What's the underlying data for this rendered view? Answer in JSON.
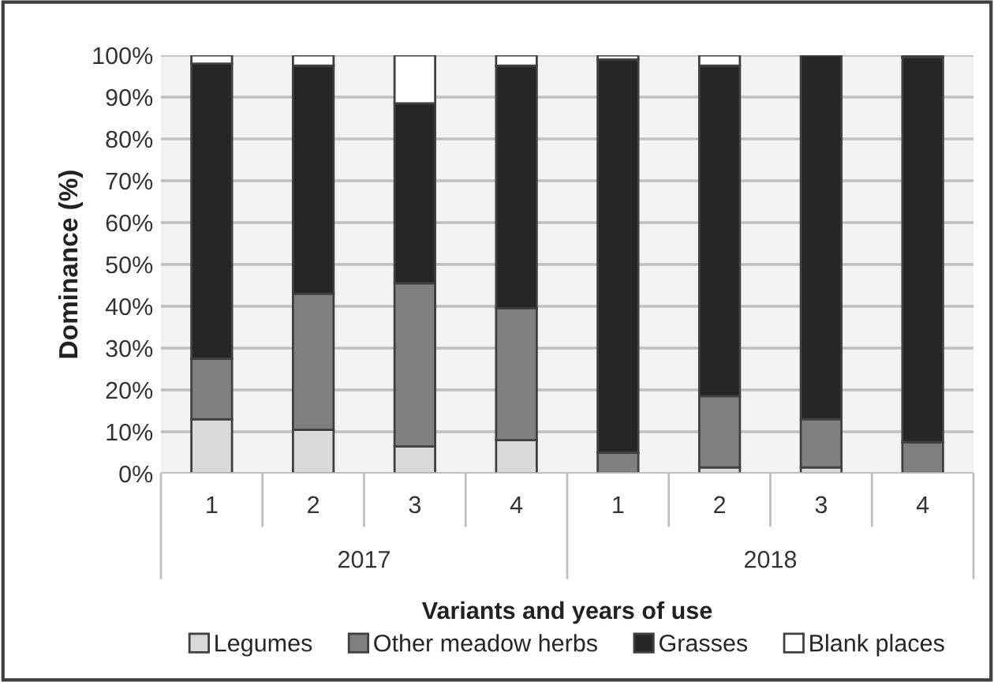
{
  "chart_data": {
    "type": "bar",
    "stacked": true,
    "ylabel": "Dominance (%)",
    "xlabel": "Variants and years of use",
    "categories": [
      "1",
      "2",
      "3",
      "4",
      "1",
      "2",
      "3",
      "4"
    ],
    "annotations": [
      "2017",
      "2018"
    ],
    "series": [
      {
        "name": "Legumes",
        "color": "#d9d9d9",
        "values": [
          13,
          10.5,
          6.5,
          8,
          0,
          1.5,
          1.5,
          0
        ]
      },
      {
        "name": "Other meadow herbs",
        "color": "#808080",
        "values": [
          14.5,
          32.5,
          39,
          31.5,
          5,
          17,
          11.5,
          7.5
        ]
      },
      {
        "name": "Grasses",
        "color": "#262626",
        "values": [
          70.5,
          54.5,
          43,
          58,
          94,
          79,
          87,
          92
        ]
      },
      {
        "name": "Blank places",
        "color": "#ffffff",
        "values": [
          2,
          2.5,
          11.5,
          2.5,
          1,
          2.5,
          0,
          0.5
        ]
      }
    ],
    "ylim": [
      0,
      100
    ],
    "yticks": [
      {
        "value": 0,
        "label": "0%"
      },
      {
        "value": 10,
        "label": "10%"
      },
      {
        "value": 20,
        "label": "20%"
      },
      {
        "value": 30,
        "label": "30%"
      },
      {
        "value": 40,
        "label": "40%"
      },
      {
        "value": 50,
        "label": "50%"
      },
      {
        "value": 60,
        "label": "60%"
      },
      {
        "value": 70,
        "label": "70%"
      },
      {
        "value": 80,
        "label": "80%"
      },
      {
        "value": 90,
        "label": "90%"
      },
      {
        "value": 100,
        "label": "100%"
      }
    ],
    "grid": true,
    "legend": "bottom"
  }
}
